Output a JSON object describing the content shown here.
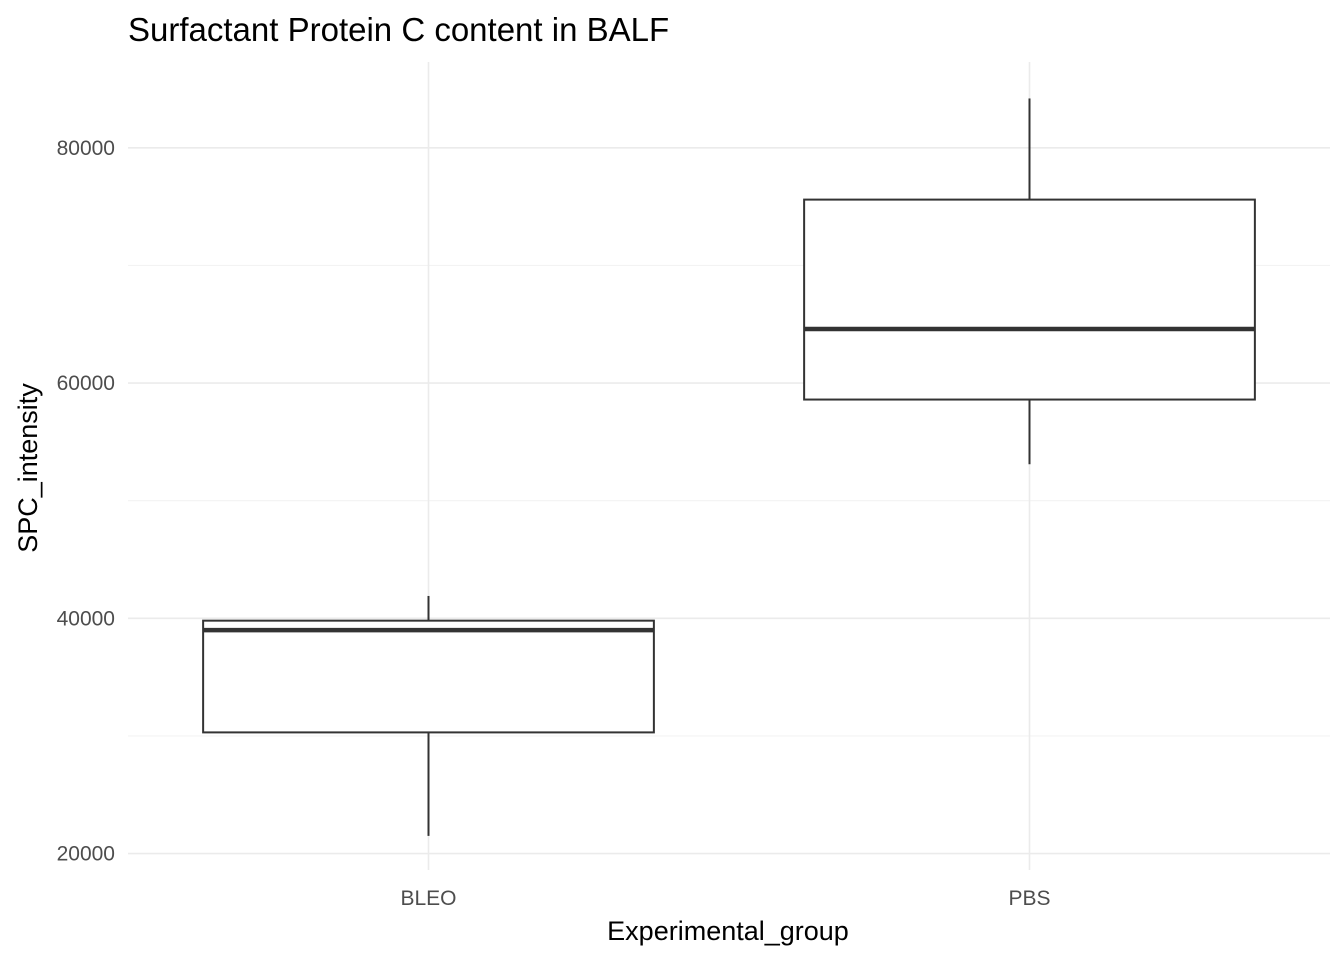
{
  "chart_data": {
    "type": "boxplot",
    "title": "Surfactant Protein C content in BALF",
    "xlabel": "Experimental_group",
    "ylabel": "SPC_intensity",
    "categories": [
      "BLEO",
      "PBS"
    ],
    "boxes": [
      {
        "category": "BLEO",
        "whisker_low": 21500,
        "q1": 30300,
        "median": 39000,
        "q3": 39800,
        "whisker_high": 41900
      },
      {
        "category": "PBS",
        "whisker_low": 53100,
        "q1": 58600,
        "median": 64600,
        "q3": 75600,
        "whisker_high": 84200
      }
    ],
    "yticks": [
      20000,
      40000,
      60000,
      80000
    ],
    "ytick_labels": [
      "20000",
      "40000",
      "60000",
      "80000"
    ],
    "ylim": [
      18600,
      87300
    ],
    "grid": true,
    "legend": "none"
  }
}
